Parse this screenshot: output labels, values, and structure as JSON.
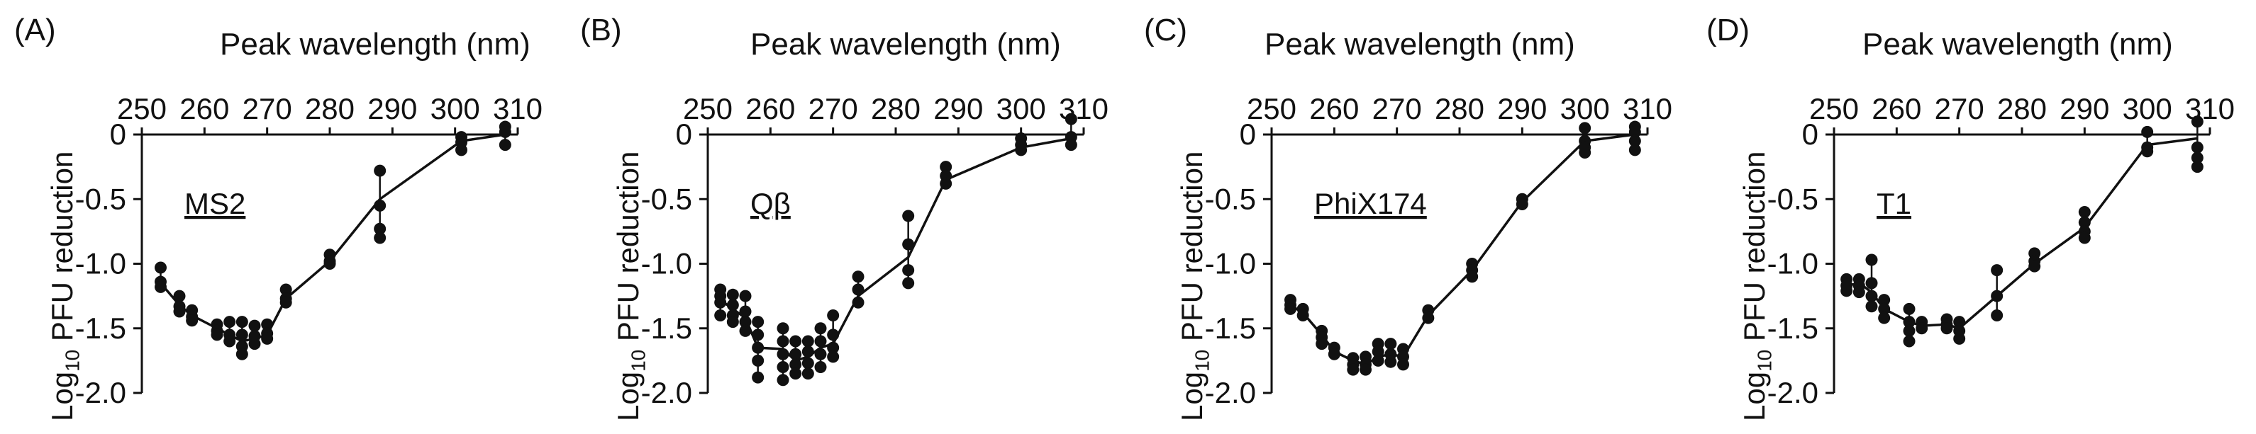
{
  "chart_data": [
    {
      "type": "line",
      "panel_label": "(A)",
      "series_label": "MS2",
      "xlabel": "Peak wavelength (nm)",
      "ylabel": "Log10 PFU reduction",
      "x_ticks": [
        "250",
        "260",
        "270",
        "280",
        "290",
        "300",
        "310"
      ],
      "y_ticks": [
        "0",
        "-0.5",
        "-1.0",
        "-1.5",
        "-2.0"
      ],
      "xlim": [
        250,
        310
      ],
      "ylim": [
        -2.0,
        0
      ],
      "x_axis_position": "top",
      "grid": false,
      "mean": {
        "x": [
          253,
          256,
          258,
          262,
          264,
          266,
          268,
          270,
          273,
          280,
          288,
          301,
          308
        ],
        "y": [
          -1.15,
          -1.32,
          -1.4,
          -1.5,
          -1.55,
          -1.6,
          -1.58,
          -1.55,
          -1.27,
          -0.98,
          -0.5,
          -0.05,
          0.0
        ]
      },
      "points": [
        [
          253,
          -1.03
        ],
        [
          253,
          -1.14
        ],
        [
          253,
          -1.18
        ],
        [
          256,
          -1.25
        ],
        [
          256,
          -1.33
        ],
        [
          256,
          -1.37
        ],
        [
          258,
          -1.36
        ],
        [
          258,
          -1.41
        ],
        [
          258,
          -1.44
        ],
        [
          262,
          -1.47
        ],
        [
          262,
          -1.52
        ],
        [
          262,
          -1.55
        ],
        [
          264,
          -1.45
        ],
        [
          264,
          -1.55
        ],
        [
          264,
          -1.6
        ],
        [
          266,
          -1.45
        ],
        [
          266,
          -1.55
        ],
        [
          266,
          -1.64
        ],
        [
          266,
          -1.7
        ],
        [
          268,
          -1.48
        ],
        [
          268,
          -1.56
        ],
        [
          268,
          -1.62
        ],
        [
          270,
          -1.47
        ],
        [
          270,
          -1.54
        ],
        [
          270,
          -1.58
        ],
        [
          273,
          -1.2
        ],
        [
          273,
          -1.27
        ],
        [
          273,
          -1.3
        ],
        [
          280,
          -0.93
        ],
        [
          280,
          -0.98
        ],
        [
          280,
          -1.0
        ],
        [
          288,
          -0.28
        ],
        [
          288,
          -0.55
        ],
        [
          288,
          -0.73
        ],
        [
          288,
          -0.8
        ],
        [
          301,
          -0.02
        ],
        [
          301,
          -0.06
        ],
        [
          301,
          -0.12
        ],
        [
          308,
          0.06
        ],
        [
          308,
          0.02
        ],
        [
          308,
          -0.08
        ]
      ]
    },
    {
      "type": "line",
      "panel_label": "(B)",
      "series_label": "Qβ",
      "xlabel": "Peak wavelength (nm)",
      "ylabel": "Log10 PFU reduction",
      "x_ticks": [
        "250",
        "260",
        "270",
        "280",
        "290",
        "300",
        "310"
      ],
      "y_ticks": [
        "0",
        "-0.5",
        "-1.0",
        "-1.5",
        "-2.0"
      ],
      "xlim": [
        250,
        310
      ],
      "ylim": [
        -2.0,
        0
      ],
      "x_axis_position": "top",
      "grid": false,
      "mean": {
        "x": [
          252,
          254,
          256,
          258,
          262,
          264,
          266,
          268,
          270,
          274,
          282,
          288,
          300,
          308
        ],
        "y": [
          -1.28,
          -1.35,
          -1.42,
          -1.65,
          -1.66,
          -1.75,
          -1.72,
          -1.65,
          -1.62,
          -1.25,
          -0.95,
          -0.35,
          -0.1,
          -0.03
        ]
      },
      "points": [
        [
          252,
          -1.2
        ],
        [
          252,
          -1.25
        ],
        [
          252,
          -1.3
        ],
        [
          252,
          -1.4
        ],
        [
          254,
          -1.24
        ],
        [
          254,
          -1.32
        ],
        [
          254,
          -1.4
        ],
        [
          254,
          -1.45
        ],
        [
          256,
          -1.25
        ],
        [
          256,
          -1.37
        ],
        [
          256,
          -1.45
        ],
        [
          256,
          -1.52
        ],
        [
          258,
          -1.45
        ],
        [
          258,
          -1.55
        ],
        [
          258,
          -1.65
        ],
        [
          258,
          -1.75
        ],
        [
          258,
          -1.88
        ],
        [
          262,
          -1.5
        ],
        [
          262,
          -1.6
        ],
        [
          262,
          -1.7
        ],
        [
          262,
          -1.8
        ],
        [
          262,
          -1.9
        ],
        [
          264,
          -1.6
        ],
        [
          264,
          -1.7
        ],
        [
          264,
          -1.78
        ],
        [
          264,
          -1.85
        ],
        [
          266,
          -1.6
        ],
        [
          266,
          -1.68
        ],
        [
          266,
          -1.77
        ],
        [
          266,
          -1.85
        ],
        [
          268,
          -1.5
        ],
        [
          268,
          -1.6
        ],
        [
          268,
          -1.7
        ],
        [
          268,
          -1.8
        ],
        [
          270,
          -1.4
        ],
        [
          270,
          -1.55
        ],
        [
          270,
          -1.65
        ],
        [
          270,
          -1.72
        ],
        [
          274,
          -1.1
        ],
        [
          274,
          -1.2
        ],
        [
          274,
          -1.3
        ],
        [
          282,
          -0.63
        ],
        [
          282,
          -0.85
        ],
        [
          282,
          -1.05
        ],
        [
          282,
          -1.15
        ],
        [
          288,
          -0.25
        ],
        [
          288,
          -0.32
        ],
        [
          288,
          -0.38
        ],
        [
          300,
          -0.03
        ],
        [
          300,
          -0.08
        ],
        [
          300,
          -0.12
        ],
        [
          308,
          0.12
        ],
        [
          308,
          -0.02
        ],
        [
          308,
          -0.08
        ]
      ]
    },
    {
      "type": "line",
      "panel_label": "(C)",
      "series_label": "PhiX174",
      "xlabel": "Peak wavelength (nm)",
      "ylabel": "Log10 PFU reduction",
      "x_ticks": [
        "250",
        "260",
        "270",
        "280",
        "290",
        "300",
        "310"
      ],
      "y_ticks": [
        "0",
        "-0.5",
        "-1.0",
        "-1.5",
        "-2.0"
      ],
      "xlim": [
        250,
        310
      ],
      "ylim": [
        -2.0,
        0
      ],
      "x_axis_position": "top",
      "grid": false,
      "mean": {
        "x": [
          253,
          255,
          258,
          260,
          263,
          265,
          267,
          269,
          271,
          275,
          282,
          290,
          300,
          308
        ],
        "y": [
          -1.32,
          -1.38,
          -1.55,
          -1.68,
          -1.75,
          -1.78,
          -1.72,
          -1.7,
          -1.72,
          -1.4,
          -1.05,
          -0.52,
          -0.05,
          0.0
        ]
      },
      "points": [
        [
          253,
          -1.28
        ],
        [
          253,
          -1.32
        ],
        [
          253,
          -1.35
        ],
        [
          255,
          -1.35
        ],
        [
          255,
          -1.4
        ],
        [
          258,
          -1.52
        ],
        [
          258,
          -1.57
        ],
        [
          258,
          -1.62
        ],
        [
          260,
          -1.65
        ],
        [
          260,
          -1.7
        ],
        [
          263,
          -1.73
        ],
        [
          263,
          -1.78
        ],
        [
          263,
          -1.82
        ],
        [
          265,
          -1.72
        ],
        [
          265,
          -1.78
        ],
        [
          265,
          -1.82
        ],
        [
          267,
          -1.62
        ],
        [
          267,
          -1.68
        ],
        [
          267,
          -1.75
        ],
        [
          269,
          -1.62
        ],
        [
          269,
          -1.7
        ],
        [
          269,
          -1.76
        ],
        [
          271,
          -1.66
        ],
        [
          271,
          -1.72
        ],
        [
          271,
          -1.78
        ],
        [
          275,
          -1.36
        ],
        [
          275,
          -1.42
        ],
        [
          282,
          -1.0
        ],
        [
          282,
          -1.05
        ],
        [
          282,
          -1.1
        ],
        [
          290,
          -0.5
        ],
        [
          290,
          -0.54
        ],
        [
          300,
          0.05
        ],
        [
          300,
          -0.05
        ],
        [
          300,
          -0.1
        ],
        [
          300,
          -0.14
        ],
        [
          308,
          0.06
        ],
        [
          308,
          0.02
        ],
        [
          308,
          -0.05
        ],
        [
          308,
          -0.12
        ]
      ]
    },
    {
      "type": "line",
      "panel_label": "(D)",
      "series_label": "T1",
      "xlabel": "Peak wavelength (nm)",
      "ylabel": "Log10 PFU reduction",
      "x_ticks": [
        "250",
        "260",
        "270",
        "280",
        "290",
        "300",
        "310"
      ],
      "y_ticks": [
        "0",
        "-0.5",
        "-1.0",
        "-1.5",
        "-2.0"
      ],
      "xlim": [
        250,
        310
      ],
      "ylim": [
        -2.0,
        0
      ],
      "x_axis_position": "top",
      "grid": false,
      "mean": {
        "x": [
          252,
          254,
          256,
          258,
          262,
          264,
          268,
          270,
          276,
          282,
          290,
          300,
          308
        ],
        "y": [
          -1.17,
          -1.15,
          -1.22,
          -1.35,
          -1.45,
          -1.48,
          -1.47,
          -1.5,
          -1.25,
          -1.0,
          -0.72,
          -0.08,
          -0.03
        ]
      },
      "points": [
        [
          252,
          -1.12
        ],
        [
          252,
          -1.17
        ],
        [
          252,
          -1.21
        ],
        [
          254,
          -1.12
        ],
        [
          254,
          -1.17
        ],
        [
          254,
          -1.22
        ],
        [
          256,
          -0.97
        ],
        [
          256,
          -1.15
        ],
        [
          256,
          -1.25
        ],
        [
          256,
          -1.33
        ],
        [
          258,
          -1.28
        ],
        [
          258,
          -1.35
        ],
        [
          258,
          -1.42
        ],
        [
          262,
          -1.35
        ],
        [
          262,
          -1.45
        ],
        [
          262,
          -1.52
        ],
        [
          262,
          -1.6
        ],
        [
          264,
          -1.45
        ],
        [
          264,
          -1.5
        ],
        [
          268,
          -1.43
        ],
        [
          268,
          -1.47
        ],
        [
          268,
          -1.5
        ],
        [
          270,
          -1.45
        ],
        [
          270,
          -1.52
        ],
        [
          270,
          -1.58
        ],
        [
          276,
          -1.05
        ],
        [
          276,
          -1.25
        ],
        [
          276,
          -1.4
        ],
        [
          282,
          -0.92
        ],
        [
          282,
          -0.98
        ],
        [
          282,
          -1.02
        ],
        [
          290,
          -0.6
        ],
        [
          290,
          -0.68
        ],
        [
          290,
          -0.75
        ],
        [
          290,
          -0.8
        ],
        [
          300,
          0.02
        ],
        [
          300,
          -0.1
        ],
        [
          300,
          -0.13
        ],
        [
          308,
          0.1
        ],
        [
          308,
          -0.1
        ],
        [
          308,
          -0.18
        ],
        [
          308,
          -0.25
        ]
      ]
    }
  ]
}
